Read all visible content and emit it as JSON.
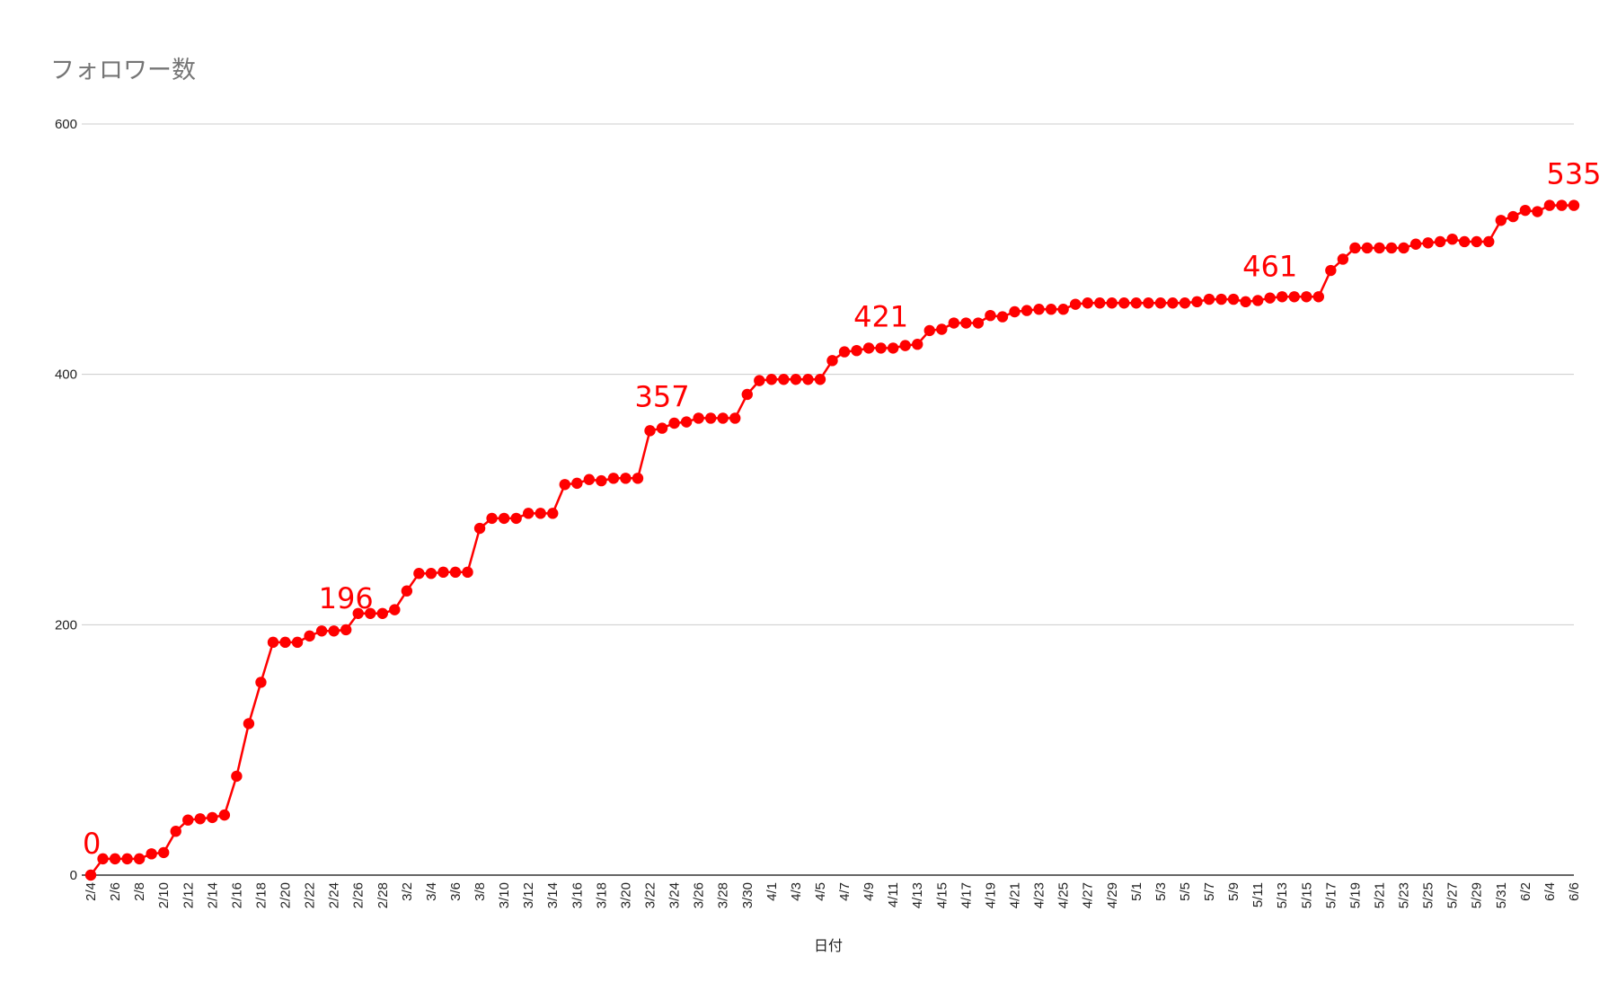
{
  "chart_data": {
    "type": "line",
    "title": "フォロワー数",
    "xlabel": "日付",
    "ylabel": "",
    "ylim": [
      0,
      600
    ],
    "yticks": [
      0,
      200,
      400,
      600
    ],
    "grid": true,
    "legend": "none",
    "series_color": "#ff0000",
    "x_tick_labels": [
      "2/4",
      "2/6",
      "2/8",
      "2/10",
      "2/12",
      "2/14",
      "2/16",
      "2/18",
      "2/20",
      "2/22",
      "2/24",
      "2/26",
      "2/28",
      "3/2",
      "3/4",
      "3/6",
      "3/8",
      "3/10",
      "3/12",
      "3/14",
      "3/16",
      "3/18",
      "3/20",
      "3/22",
      "3/24",
      "3/26",
      "3/28",
      "3/30",
      "4/1",
      "4/3",
      "4/5",
      "4/7",
      "4/9",
      "4/11",
      "4/13",
      "4/15",
      "4/17",
      "4/19",
      "4/21",
      "4/23",
      "4/25",
      "4/27",
      "4/29",
      "5/1",
      "5/3",
      "5/5",
      "5/7",
      "5/9",
      "5/11",
      "5/13",
      "5/15",
      "5/17",
      "5/19",
      "5/21",
      "5/23",
      "5/25",
      "5/27",
      "5/29",
      "5/31",
      "6/2",
      "6/4",
      "6/6"
    ],
    "x_start": "2/4",
    "x_end": "6/6",
    "series": [
      {
        "values": [
          0,
          13,
          13,
          13,
          13,
          17,
          18,
          35,
          44,
          45,
          46,
          48,
          79,
          121,
          154,
          186,
          186,
          186,
          191,
          195,
          195,
          196,
          209,
          209,
          209,
          212,
          227,
          241,
          241,
          242,
          242,
          242,
          277,
          285,
          285,
          285,
          289,
          289,
          289,
          312,
          313,
          316,
          315,
          317,
          317,
          317,
          355,
          357,
          361,
          362,
          365,
          365,
          365,
          365,
          384,
          395,
          396,
          396,
          396,
          396,
          396,
          411,
          418,
          419,
          421,
          421,
          421,
          423,
          424,
          435,
          436,
          441,
          441,
          441,
          447,
          446,
          450,
          451,
          452,
          452,
          452,
          456,
          457,
          457,
          457,
          457,
          457,
          457,
          457,
          457,
          457,
          458,
          460,
          460,
          460,
          458,
          459,
          461,
          462,
          462,
          462,
          462,
          483,
          492,
          501,
          501,
          501,
          501,
          501,
          504,
          505,
          506,
          508,
          506,
          506,
          506,
          523,
          526,
          531,
          530,
          535,
          535,
          535
        ]
      }
    ],
    "data_labels": [
      {
        "x": "2/4",
        "text": "0"
      },
      {
        "x": "2/25",
        "text": "196"
      },
      {
        "x": "3/23",
        "text": "357"
      },
      {
        "x": "4/10",
        "text": "421"
      },
      {
        "x": "5/12",
        "text": "461"
      },
      {
        "x": "6/6",
        "text": "535"
      }
    ]
  }
}
